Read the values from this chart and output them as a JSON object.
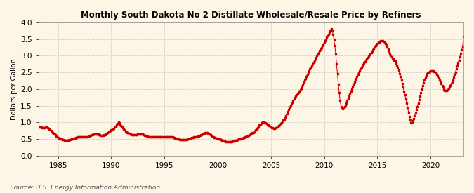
{
  "title": "Monthly South Dakota No 2 Distillate Wholesale/Resale Price by Refiners",
  "ylabel": "Dollars per Gallon",
  "source": "Source: U.S. Energy Information Administration",
  "line_color": "#cc0000",
  "marker": "s",
  "marker_size": 2.0,
  "background_color": "#fdf5e6",
  "grid_color": "#aaaaaa",
  "ylim": [
    0.0,
    4.0
  ],
  "yticks": [
    0.0,
    0.5,
    1.0,
    1.5,
    2.0,
    2.5,
    3.0,
    3.5,
    4.0
  ],
  "start_year": 1983,
  "start_month": 3,
  "values": [
    0.87,
    0.86,
    0.85,
    0.85,
    0.84,
    0.83,
    0.83,
    0.84,
    0.85,
    0.85,
    0.83,
    0.82,
    0.8,
    0.78,
    0.75,
    0.73,
    0.7,
    0.67,
    0.64,
    0.62,
    0.59,
    0.57,
    0.55,
    0.53,
    0.51,
    0.5,
    0.49,
    0.48,
    0.47,
    0.46,
    0.46,
    0.46,
    0.46,
    0.46,
    0.47,
    0.47,
    0.48,
    0.49,
    0.5,
    0.51,
    0.52,
    0.53,
    0.54,
    0.55,
    0.56,
    0.57,
    0.57,
    0.57,
    0.57,
    0.57,
    0.57,
    0.57,
    0.57,
    0.57,
    0.57,
    0.57,
    0.58,
    0.59,
    0.6,
    0.61,
    0.62,
    0.63,
    0.64,
    0.65,
    0.65,
    0.65,
    0.65,
    0.64,
    0.63,
    0.62,
    0.61,
    0.6,
    0.6,
    0.61,
    0.62,
    0.63,
    0.65,
    0.67,
    0.69,
    0.71,
    0.73,
    0.75,
    0.77,
    0.78,
    0.8,
    0.82,
    0.85,
    0.88,
    0.92,
    0.96,
    1.0,
    0.98,
    0.95,
    0.91,
    0.87,
    0.83,
    0.8,
    0.77,
    0.74,
    0.72,
    0.7,
    0.68,
    0.66,
    0.65,
    0.64,
    0.63,
    0.63,
    0.62,
    0.62,
    0.62,
    0.63,
    0.63,
    0.64,
    0.64,
    0.65,
    0.65,
    0.65,
    0.64,
    0.63,
    0.62,
    0.61,
    0.6,
    0.59,
    0.58,
    0.57,
    0.56,
    0.56,
    0.56,
    0.56,
    0.57,
    0.57,
    0.57,
    0.57,
    0.57,
    0.57,
    0.57,
    0.57,
    0.57,
    0.57,
    0.57,
    0.57,
    0.57,
    0.57,
    0.57,
    0.57,
    0.57,
    0.57,
    0.57,
    0.57,
    0.57,
    0.57,
    0.56,
    0.55,
    0.54,
    0.53,
    0.52,
    0.51,
    0.5,
    0.49,
    0.48,
    0.48,
    0.48,
    0.48,
    0.48,
    0.48,
    0.48,
    0.48,
    0.48,
    0.49,
    0.5,
    0.51,
    0.52,
    0.53,
    0.54,
    0.55,
    0.56,
    0.57,
    0.57,
    0.57,
    0.57,
    0.58,
    0.59,
    0.6,
    0.62,
    0.63,
    0.65,
    0.66,
    0.67,
    0.68,
    0.68,
    0.68,
    0.67,
    0.66,
    0.65,
    0.63,
    0.61,
    0.59,
    0.57,
    0.55,
    0.54,
    0.53,
    0.52,
    0.51,
    0.5,
    0.49,
    0.48,
    0.47,
    0.46,
    0.45,
    0.44,
    0.43,
    0.42,
    0.42,
    0.42,
    0.42,
    0.42,
    0.42,
    0.42,
    0.42,
    0.43,
    0.43,
    0.44,
    0.45,
    0.46,
    0.47,
    0.48,
    0.49,
    0.5,
    0.51,
    0.52,
    0.53,
    0.54,
    0.55,
    0.56,
    0.57,
    0.58,
    0.59,
    0.6,
    0.62,
    0.64,
    0.66,
    0.68,
    0.7,
    0.72,
    0.74,
    0.77,
    0.8,
    0.84,
    0.88,
    0.92,
    0.95,
    0.97,
    0.99,
    1.0,
    1.0,
    0.99,
    0.98,
    0.96,
    0.94,
    0.92,
    0.9,
    0.88,
    0.86,
    0.84,
    0.83,
    0.82,
    0.82,
    0.83,
    0.84,
    0.86,
    0.88,
    0.9,
    0.93,
    0.96,
    0.99,
    1.02,
    1.06,
    1.1,
    1.15,
    1.2,
    1.26,
    1.32,
    1.38,
    1.44,
    1.5,
    1.55,
    1.6,
    1.65,
    1.7,
    1.74,
    1.78,
    1.82,
    1.86,
    1.9,
    1.94,
    1.98,
    2.02,
    2.08,
    2.14,
    2.2,
    2.26,
    2.32,
    2.38,
    2.44,
    2.5,
    2.55,
    2.6,
    2.65,
    2.7,
    2.75,
    2.8,
    2.85,
    2.9,
    2.95,
    3.0,
    3.05,
    3.1,
    3.15,
    3.2,
    3.25,
    3.3,
    3.35,
    3.4,
    3.45,
    3.5,
    3.55,
    3.6,
    3.65,
    3.7,
    3.75,
    3.8,
    3.75,
    3.65,
    3.5,
    3.3,
    3.05,
    2.75,
    2.45,
    2.15,
    1.9,
    1.65,
    1.48,
    1.42,
    1.4,
    1.42,
    1.46,
    1.52,
    1.58,
    1.65,
    1.72,
    1.79,
    1.86,
    1.93,
    2.0,
    2.07,
    2.14,
    2.2,
    2.26,
    2.32,
    2.38,
    2.44,
    2.5,
    2.55,
    2.6,
    2.65,
    2.7,
    2.74,
    2.78,
    2.82,
    2.86,
    2.9,
    2.94,
    2.98,
    3.02,
    3.06,
    3.1,
    3.14,
    3.18,
    3.22,
    3.26,
    3.3,
    3.33,
    3.36,
    3.39,
    3.41,
    3.43,
    3.45,
    3.46,
    3.45,
    3.43,
    3.4,
    3.36,
    3.32,
    3.26,
    3.2,
    3.12,
    3.05,
    3.0,
    2.96,
    2.93,
    2.9,
    2.87,
    2.83,
    2.78,
    2.72,
    2.65,
    2.56,
    2.47,
    2.38,
    2.28,
    2.17,
    2.06,
    1.94,
    1.82,
    1.7,
    1.57,
    1.43,
    1.3,
    1.18,
    1.07,
    0.99,
    1.0,
    1.05,
    1.12,
    1.2,
    1.29,
    1.38,
    1.47,
    1.57,
    1.67,
    1.78,
    1.89,
    2.0,
    2.1,
    2.19,
    2.27,
    2.34,
    2.4,
    2.45,
    2.48,
    2.51,
    2.53,
    2.54,
    2.55,
    2.55,
    2.54,
    2.53,
    2.51,
    2.48,
    2.44,
    2.39,
    2.34,
    2.28,
    2.22,
    2.16,
    2.1,
    2.05,
    2.0,
    1.96,
    1.95,
    1.96,
    1.98,
    2.01,
    2.05,
    2.1,
    2.15,
    2.21,
    2.28,
    2.35,
    2.43,
    2.51,
    2.6,
    2.69,
    2.78,
    2.87,
    2.97,
    3.07,
    3.17,
    3.27,
    3.57
  ]
}
